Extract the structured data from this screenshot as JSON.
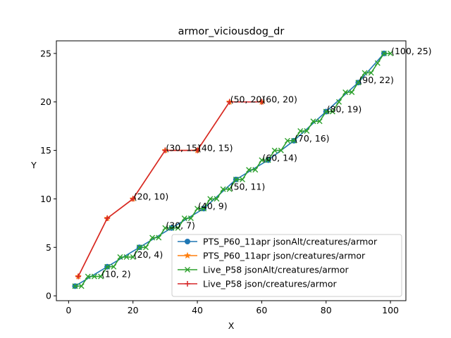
{
  "chart_data": {
    "type": "line",
    "title": "armor_viciousdog_dr",
    "xlabel": "X",
    "ylabel": "Y",
    "xlim": [
      -3.8,
      104.8
    ],
    "ylim": [
      -0.5,
      26.3
    ],
    "xticks": [
      0,
      20,
      40,
      60,
      80,
      100
    ],
    "yticks": [
      0,
      5,
      10,
      15,
      20,
      25
    ],
    "grid": false,
    "legend_position": "lower-right",
    "series": [
      {
        "name": "PTS_P60_11apr jsonAlt/creatures/armor",
        "color": "#1f77b4",
        "marker": "circle",
        "x": [
          2,
          12,
          22,
          32,
          42,
          52,
          62,
          70,
          80,
          90,
          98
        ],
        "y": [
          1,
          3,
          5,
          7,
          9,
          12,
          14,
          16,
          19,
          22,
          25
        ]
      },
      {
        "name": "PTS_P60_11apr json/creatures/armor",
        "color": "#ff7f0e",
        "marker": "star",
        "x": [
          3,
          12,
          20,
          30,
          40,
          50,
          60
        ],
        "y": [
          2,
          8,
          10,
          15,
          15,
          20,
          20
        ]
      },
      {
        "name": "Live_P58 jsonAlt/creatures/armor",
        "color": "#2ca02c",
        "marker": "x",
        "x": [
          2,
          4,
          6,
          8,
          10,
          12,
          14,
          16,
          18,
          20,
          22,
          24,
          26,
          28,
          30,
          32,
          34,
          36,
          38,
          40,
          42,
          44,
          46,
          48,
          50,
          52,
          54,
          56,
          58,
          60,
          62,
          64,
          66,
          68,
          70,
          72,
          74,
          76,
          78,
          80,
          82,
          84,
          86,
          88,
          90,
          92,
          94,
          96,
          98,
          100
        ],
        "y": [
          1,
          1,
          2,
          2,
          2,
          3,
          3,
          4,
          4,
          4,
          5,
          5,
          6,
          6,
          7,
          7,
          7,
          8,
          8,
          9,
          9,
          10,
          10,
          11,
          11,
          12,
          12,
          13,
          13,
          14,
          14,
          15,
          15,
          16,
          16,
          17,
          17,
          18,
          18,
          19,
          19,
          20,
          21,
          21,
          22,
          23,
          23,
          24,
          25,
          25
        ]
      },
      {
        "name": "Live_P58 json/creatures/armor",
        "color": "#d62728",
        "marker": "plus",
        "x": [
          3,
          12,
          20,
          30,
          40,
          50,
          60
        ],
        "y": [
          2,
          8,
          10,
          15,
          15,
          20,
          20
        ]
      }
    ],
    "annotations": [
      {
        "text": "(10, 2)",
        "x": 10,
        "y": 2
      },
      {
        "text": "(20, 4)",
        "x": 20,
        "y": 4
      },
      {
        "text": "(30, 7)",
        "x": 30,
        "y": 7
      },
      {
        "text": "(40, 9)",
        "x": 40,
        "y": 9
      },
      {
        "text": "(50, 11)",
        "x": 50,
        "y": 11
      },
      {
        "text": "(60, 14)",
        "x": 60,
        "y": 14
      },
      {
        "text": "(70, 16)",
        "x": 70,
        "y": 16
      },
      {
        "text": "(80, 19)",
        "x": 80,
        "y": 19
      },
      {
        "text": "(90, 22)",
        "x": 90,
        "y": 22
      },
      {
        "text": "(100, 25)",
        "x": 100,
        "y": 25
      },
      {
        "text": "(20, 10)",
        "x": 20,
        "y": 10
      },
      {
        "text": "(30, 15)",
        "x": 30,
        "y": 15
      },
      {
        "text": "(40, 15)",
        "x": 40,
        "y": 15
      },
      {
        "text": "(50, 20)",
        "x": 50,
        "y": 20
      },
      {
        "text": "(60, 20)",
        "x": 60,
        "y": 20
      }
    ]
  }
}
